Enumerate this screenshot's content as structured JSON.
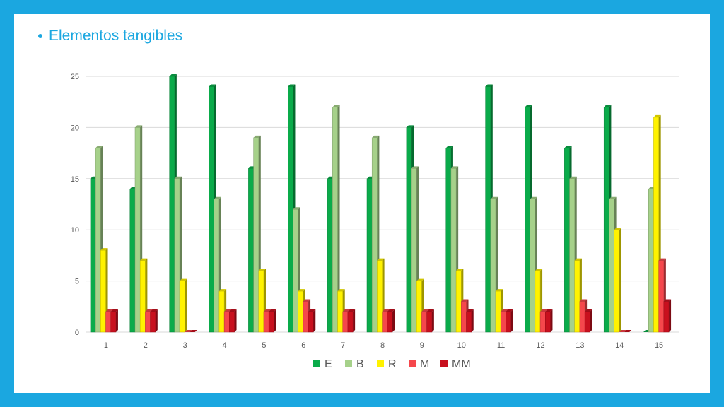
{
  "slide": {
    "title": "Elementos tangibles"
  },
  "chart_data": {
    "type": "bar",
    "title": "",
    "xlabel": "",
    "ylabel": "",
    "categories": [
      "1",
      "2",
      "3",
      "4",
      "5",
      "6",
      "7",
      "8",
      "9",
      "10",
      "11",
      "12",
      "13",
      "14",
      "15"
    ],
    "ylim": [
      0,
      25
    ],
    "yticks": [
      0,
      5,
      10,
      15,
      20,
      25
    ],
    "grid": true,
    "legend_position": "bottom",
    "series": [
      {
        "name": "E",
        "color": "#0aab4a",
        "values": [
          15,
          14,
          25,
          24,
          16,
          24,
          15,
          15,
          20,
          18,
          24,
          22,
          18,
          22,
          0
        ]
      },
      {
        "name": "B",
        "color": "#a6d18a",
        "values": [
          18,
          20,
          15,
          13,
          19,
          12,
          22,
          19,
          16,
          16,
          13,
          13,
          15,
          13,
          14
        ]
      },
      {
        "name": "R",
        "color": "#fff200",
        "values": [
          8,
          7,
          5,
          4,
          6,
          4,
          4,
          7,
          5,
          6,
          4,
          6,
          7,
          10,
          21
        ]
      },
      {
        "name": "M",
        "color": "#f5474c",
        "values": [
          2,
          2,
          0,
          2,
          2,
          3,
          2,
          2,
          2,
          3,
          2,
          2,
          3,
          0,
          7
        ]
      },
      {
        "name": "MM",
        "color": "#c8101e",
        "values": [
          2,
          2,
          0,
          2,
          2,
          2,
          2,
          2,
          2,
          2,
          2,
          2,
          2,
          0,
          3
        ]
      }
    ]
  }
}
